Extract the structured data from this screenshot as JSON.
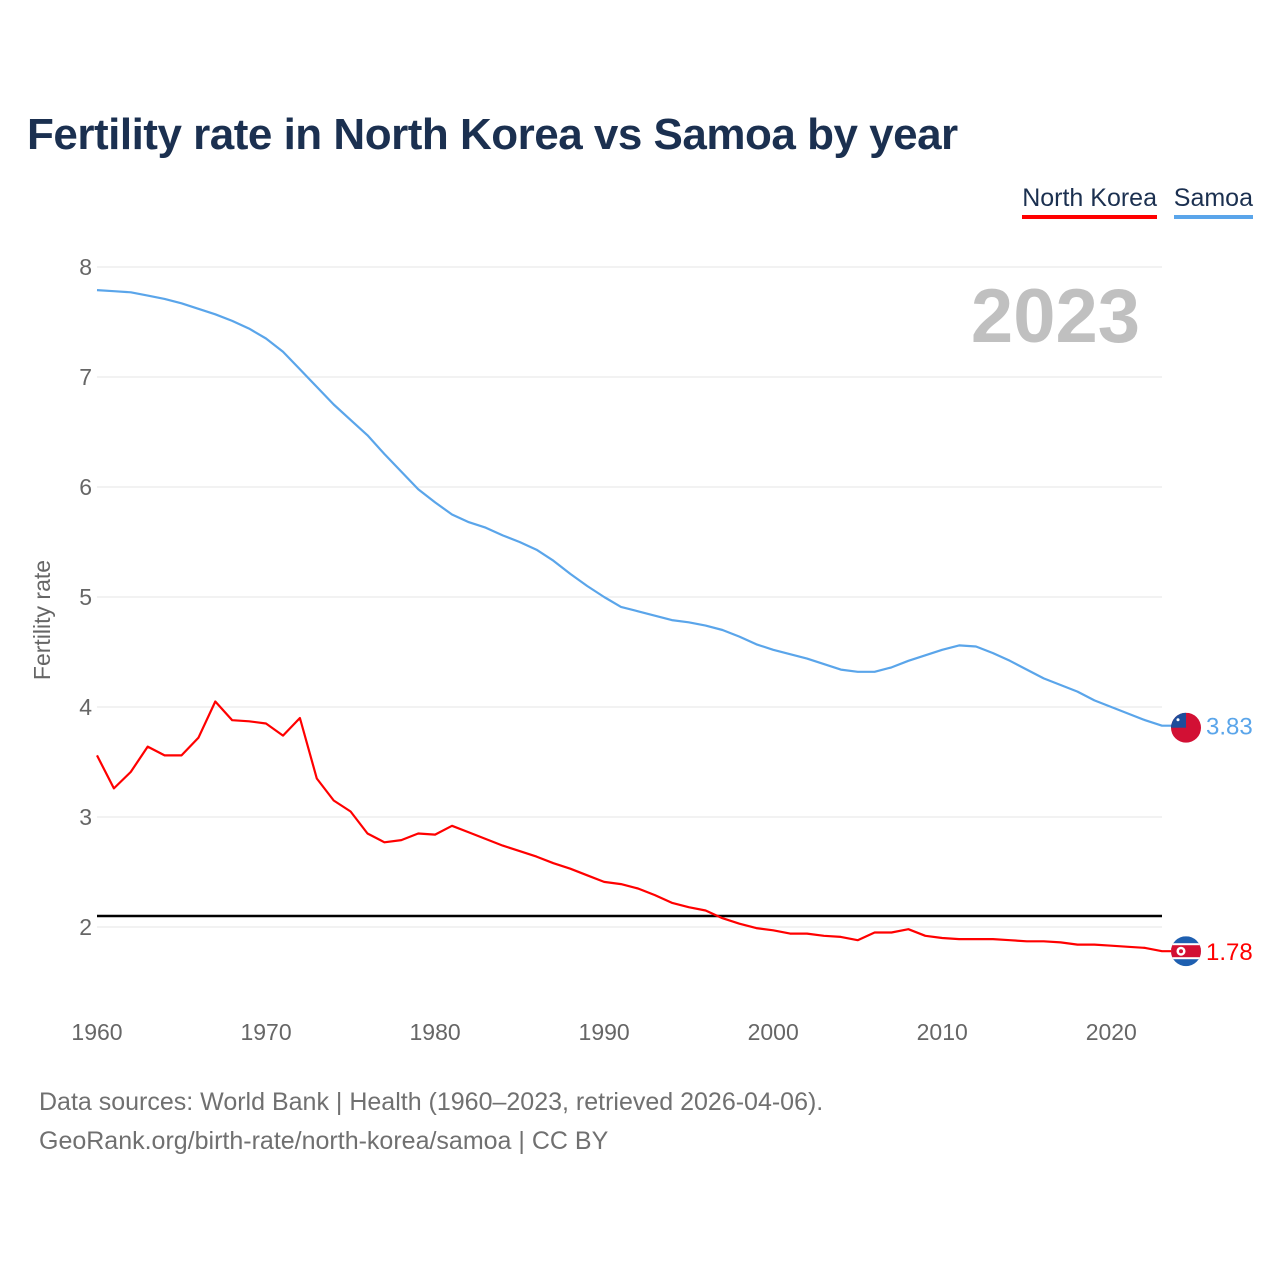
{
  "title": "Fertility rate in North Korea vs Samoa by year",
  "legend": [
    {
      "name": "North Korea",
      "color": "#ff0000"
    },
    {
      "name": "Samoa",
      "color": "#5aa5ea"
    }
  ],
  "sources": {
    "line1": "Data sources: World Bank | Health (1960–2023, retrieved 2026-04-06).",
    "line2": "GeoRank.org/birth-rate/north-korea/samoa | CC BY"
  },
  "chart_data": {
    "type": "line",
    "title": "Fertility rate in North Korea vs Samoa by year",
    "ylabel": "Fertility rate",
    "xlabel": "",
    "year_watermark": "2023",
    "xlim": [
      1960,
      2023
    ],
    "ylim": [
      1.5,
      8
    ],
    "yticks": [
      2,
      3,
      4,
      5,
      6,
      7,
      8
    ],
    "xticks": [
      1960,
      1970,
      1980,
      1990,
      2000,
      2010,
      2020
    ],
    "reference_line": 2.1,
    "x_start": 1960,
    "series": [
      {
        "name": "North Korea",
        "color": "#ff0000",
        "end_label": "1.78",
        "values": [
          3.56,
          3.26,
          3.41,
          3.64,
          3.56,
          3.56,
          3.72,
          4.05,
          3.88,
          3.87,
          3.85,
          3.74,
          3.9,
          3.35,
          3.15,
          3.05,
          2.85,
          2.77,
          2.79,
          2.85,
          2.84,
          2.92,
          2.86,
          2.8,
          2.74,
          2.69,
          2.64,
          2.58,
          2.53,
          2.47,
          2.41,
          2.39,
          2.35,
          2.29,
          2.22,
          2.18,
          2.15,
          2.08,
          2.03,
          1.99,
          1.97,
          1.94,
          1.94,
          1.92,
          1.91,
          1.88,
          1.95,
          1.95,
          1.98,
          1.92,
          1.9,
          1.89,
          1.89,
          1.89,
          1.88,
          1.87,
          1.87,
          1.86,
          1.84,
          1.84,
          1.83,
          1.82,
          1.81,
          1.78
        ]
      },
      {
        "name": "Samoa",
        "color": "#5aa5ea",
        "end_label": "3.83",
        "values": [
          7.79,
          7.78,
          7.77,
          7.74,
          7.71,
          7.67,
          7.62,
          7.57,
          7.51,
          7.44,
          7.35,
          7.23,
          7.07,
          6.91,
          6.75,
          6.61,
          6.47,
          6.3,
          6.14,
          5.98,
          5.86,
          5.75,
          5.68,
          5.63,
          5.56,
          5.5,
          5.43,
          5.33,
          5.21,
          5.1,
          5.0,
          4.91,
          4.87,
          4.83,
          4.79,
          4.77,
          4.74,
          4.7,
          4.64,
          4.57,
          4.52,
          4.48,
          4.44,
          4.39,
          4.34,
          4.32,
          4.32,
          4.36,
          4.42,
          4.47,
          4.52,
          4.56,
          4.55,
          4.49,
          4.42,
          4.34,
          4.26,
          4.2,
          4.14,
          4.06,
          4.0,
          3.94,
          3.88,
          3.83
        ]
      }
    ]
  }
}
